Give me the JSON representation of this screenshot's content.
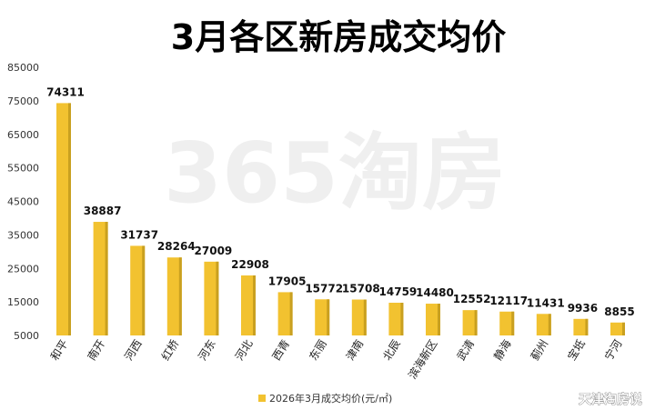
{
  "watermark": "365淘房",
  "source_mark": "天津淘房说",
  "colors": {
    "bar": "#F2C230",
    "bar_shadow": "#C9A020",
    "text": "#111111"
  },
  "chart_data": {
    "type": "bar",
    "title": "3月各区新房成交均价",
    "categories": [
      "和平",
      "南开",
      "河西",
      "红桥",
      "河东",
      "河北",
      "西青",
      "东丽",
      "津南",
      "北辰",
      "滨海新区",
      "武清",
      "静海",
      "蓟州",
      "宝坻",
      "宁河"
    ],
    "series": [
      {
        "name": "2026年3月成交均价(元/㎡)",
        "values": [
          74311,
          38887,
          31737,
          28264,
          27009,
          22908,
          17905,
          15772,
          15708,
          14759,
          14480,
          12552,
          12117,
          11431,
          9936,
          8855
        ]
      }
    ],
    "yticks": [
      5000,
      15000,
      25000,
      35000,
      45000,
      55000,
      65000,
      75000,
      85000
    ],
    "ylim": [
      5000,
      85000
    ],
    "grid": false,
    "legend_position": "bottom",
    "xlabel": "",
    "ylabel": ""
  }
}
